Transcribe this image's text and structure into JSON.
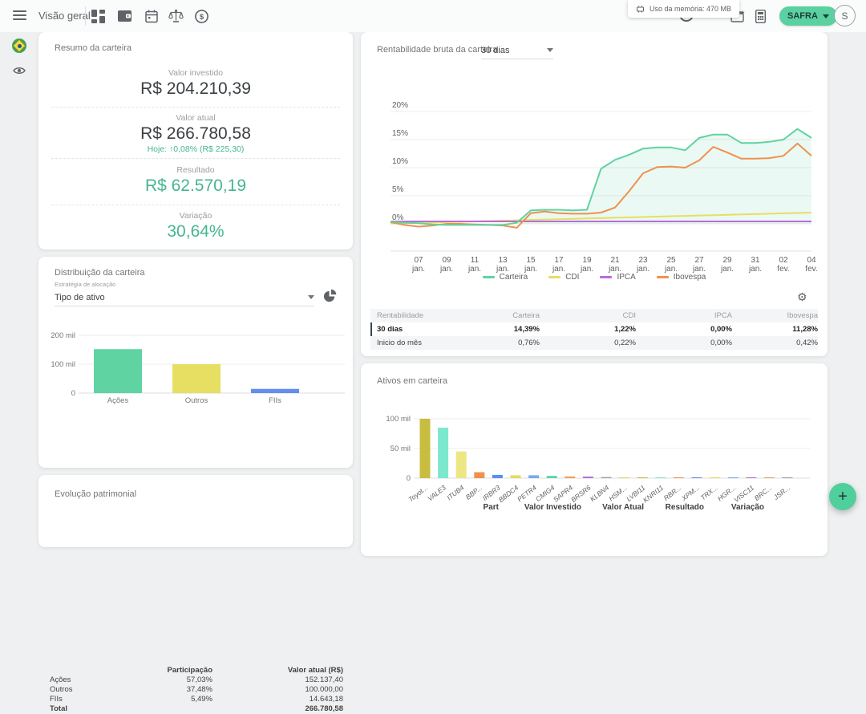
{
  "topbar": {
    "title": "Visão geral",
    "tooltip": "Uso da memória: 470 MB",
    "account_button": "SAFRA",
    "avatar_initial": "S"
  },
  "summary_card": {
    "title": "Resumo da carteira",
    "invested_label": "Valor investido",
    "invested_value": "R$ 204.210,39",
    "current_label": "Valor atual",
    "current_value": "R$ 266.780,58",
    "today_line": "Hoje: ↑0,08% (R$ 225,30)",
    "result_label": "Resultado",
    "result_value": "R$ 62.570,19",
    "variation_label": "Variação",
    "variation_value": "30,64%"
  },
  "distribution_card": {
    "title": "Distribuição da carteira",
    "select_label": "Estratégia de alocação",
    "select_value": "Tipo de ativo",
    "table": {
      "part_header": "Participação",
      "value_header": "Valor atual (R$)",
      "rows": [
        {
          "name": "Ações",
          "part": "57,03%",
          "value": "152.137,40"
        },
        {
          "name": "Outros",
          "part": "37,48%",
          "value": "100.000,00"
        },
        {
          "name": "FIIs",
          "part": "5,49%",
          "value": "14.643,18"
        }
      ],
      "total_label": "Total",
      "total_value": "266.780,58"
    }
  },
  "evolution_card": {
    "title": "Evolução patrimonial"
  },
  "profit_card": {
    "title": "Rentabilidade bruta da carteira",
    "select_value": "30 dias",
    "table": {
      "headers": [
        "Rentabilidade",
        "Carteira",
        "CDI",
        "IPCA",
        "Ibovespa"
      ],
      "rows": [
        {
          "label": "30 dias",
          "values": [
            "14,39%",
            "1,22%",
            "0,00%",
            "11,28%"
          ]
        },
        {
          "label": "Inicio do mês",
          "values": [
            "0,76%",
            "0,22%",
            "0,00%",
            "0,42%"
          ]
        }
      ]
    }
  },
  "assets_card": {
    "title": "Ativos em carteira",
    "table_headers": [
      "Part",
      "Valor Investido",
      "Valor Atual",
      "Resultado",
      "Variação"
    ]
  },
  "fab_label": "+",
  "colors": {
    "accent_green": "#5bd0a1",
    "green_text": "#45b68f",
    "icon_gray": "#5f6368"
  },
  "chart_data": [
    {
      "id": "distribution",
      "type": "bar",
      "title": "Distribuição da carteira",
      "categories": [
        "Ações",
        "Outros",
        "FIIs"
      ],
      "values": [
        152137.4,
        100000.0,
        14643.18
      ],
      "colors": [
        "#5fd3a2",
        "#e6df62",
        "#638ef0"
      ],
      "ylim": [
        0,
        200000
      ],
      "yticks": [
        {
          "v": 0,
          "label": "0"
        },
        {
          "v": 100000,
          "label": "100 mil"
        },
        {
          "v": 200000,
          "label": "200 mil"
        }
      ],
      "grid": true,
      "legend": false
    },
    {
      "id": "rentabilidade",
      "type": "line",
      "title": "Rentabilidade bruta da carteira",
      "period": "30 dias",
      "ylabel": "%",
      "ylim": [
        -1,
        22
      ],
      "yticks": [
        {
          "v": 0,
          "label": "0%"
        },
        {
          "v": 5,
          "label": "5%"
        },
        {
          "v": 10,
          "label": "10%"
        },
        {
          "v": 15,
          "label": "15%"
        },
        {
          "v": 20,
          "label": "20%"
        }
      ],
      "dates": [
        "05 jan.",
        "06 jan.",
        "07 jan.",
        "08 jan.",
        "09 jan.",
        "10 jan.",
        "11 jan.",
        "12 jan.",
        "13 jan.",
        "14 jan.",
        "15 jan.",
        "16 jan.",
        "17 jan.",
        "18 jan.",
        "19 jan.",
        "20 jan.",
        "21 jan.",
        "22 jan.",
        "23 jan.",
        "24 jan.",
        "25 jan.",
        "26 jan.",
        "27 jan.",
        "28 jan.",
        "29 jan.",
        "30 jan.",
        "31 jan.",
        "01 fev.",
        "02 fev.",
        "03 fev.",
        "04 fev."
      ],
      "xticks": [
        {
          "i": 2,
          "label": "07 jan."
        },
        {
          "i": 4,
          "label": "09 jan."
        },
        {
          "i": 6,
          "label": "11 jan."
        },
        {
          "i": 8,
          "label": "13 jan."
        },
        {
          "i": 10,
          "label": "15 jan."
        },
        {
          "i": 12,
          "label": "17 jan."
        },
        {
          "i": 14,
          "label": "19 jan."
        },
        {
          "i": 16,
          "label": "21 jan."
        },
        {
          "i": 18,
          "label": "23 jan."
        },
        {
          "i": 20,
          "label": "25 jan."
        },
        {
          "i": 22,
          "label": "27 jan."
        },
        {
          "i": 24,
          "label": "29 jan."
        },
        {
          "i": 26,
          "label": "31 jan."
        },
        {
          "i": 28,
          "label": "02 fev."
        },
        {
          "i": 30,
          "label": "04 fev."
        }
      ],
      "series": [
        {
          "name": "Carteira",
          "color": "#5fd3a2",
          "fill": "rgba(95,211,162,0.13)",
          "values": [
            0.4,
            0.2,
            0.1,
            -0.1,
            -0.2,
            -0.2,
            -0.2,
            -0.2,
            -0.2,
            0.2,
            2.4,
            2.5,
            2.5,
            2.4,
            2.5,
            9.8,
            11.4,
            12.3,
            13.4,
            13.6,
            13.6,
            13.1,
            15.3,
            15.9,
            15.9,
            14.4,
            14.4,
            14.6,
            15.0,
            16.9,
            15.3
          ]
        },
        {
          "name": "CDI",
          "color": "#e6df62",
          "values": [
            0.05,
            0.11,
            0.18,
            0.24,
            0.31,
            0.37,
            0.44,
            0.5,
            0.57,
            0.63,
            0.7,
            0.76,
            0.83,
            0.89,
            0.96,
            1.02,
            1.09,
            1.15,
            1.22,
            1.28,
            1.35,
            1.41,
            1.48,
            1.54,
            1.61,
            1.67,
            1.74,
            1.8,
            1.87,
            1.93,
            2.0
          ]
        },
        {
          "name": "IPCA",
          "color": "#bb6bd9",
          "values": [
            0.42,
            0.42,
            0.42,
            0.42,
            0.42,
            0.42,
            0.42,
            0.42,
            0.42,
            0.42,
            0.42,
            0.42,
            0.42,
            0.42,
            0.42,
            0.42,
            0.42,
            0.42,
            0.42,
            0.42,
            0.42,
            0.42,
            0.42,
            0.42,
            0.42,
            0.42,
            0.42,
            0.42,
            0.42,
            0.42,
            0.42
          ]
        },
        {
          "name": "Ibovespa",
          "color": "#f0914e",
          "values": [
            0.3,
            -0.2,
            -0.5,
            -0.3,
            0.0,
            0.0,
            -0.1,
            -0.2,
            -0.3,
            -0.7,
            1.9,
            2.2,
            1.9,
            1.8,
            1.8,
            2.0,
            2.9,
            5.8,
            9.0,
            10.1,
            10.2,
            10.0,
            11.3,
            13.7,
            12.7,
            11.6,
            11.6,
            11.7,
            12.1,
            14.3,
            12.1
          ]
        }
      ],
      "legend_position": "bottom",
      "grid": true
    },
    {
      "id": "ativos",
      "type": "bar",
      "title": "Ativos em carteira",
      "categories": [
        "Toyot...",
        "VALE3",
        "ITUB4",
        "BBP...",
        "IRBR3",
        "BBDC4",
        "PETR4",
        "CMIG4",
        "SAPR4",
        "BRSR6",
        "KLBN4",
        "HSM...",
        "LVBI11",
        "KNRI11",
        "RBR...",
        "XPM...",
        "TRX...",
        "HGR...",
        "VISC11",
        "BRC...",
        "JSR..."
      ],
      "values": [
        100000,
        85000,
        45000,
        10000,
        5500,
        4800,
        4800,
        3800,
        2800,
        2600,
        1800,
        1500,
        1200,
        1000,
        900,
        800,
        700,
        700,
        600,
        600,
        500
      ],
      "colors": [
        "#c9bd3f",
        "#7ce8cd",
        "#ece784",
        "#f0914e",
        "#5b8def",
        "#e8d95e",
        "#7aa7f0",
        "#5fd3a2",
        "#f0a050",
        "#b06fd6",
        "#9aa0a6",
        "#e8d95e",
        "#c9bd3f",
        "#7ce8cd",
        "#f0914e",
        "#5b8def",
        "#e8d95e",
        "#7aa7f0",
        "#b06fd6",
        "#f0a050",
        "#9aa0a6"
      ],
      "ylim": [
        0,
        110000
      ],
      "yticks": [
        {
          "v": 0,
          "label": "0"
        },
        {
          "v": 50000,
          "label": "50 mil"
        },
        {
          "v": 100000,
          "label": "100 mil"
        }
      ],
      "grid": true,
      "legend": false
    }
  ]
}
